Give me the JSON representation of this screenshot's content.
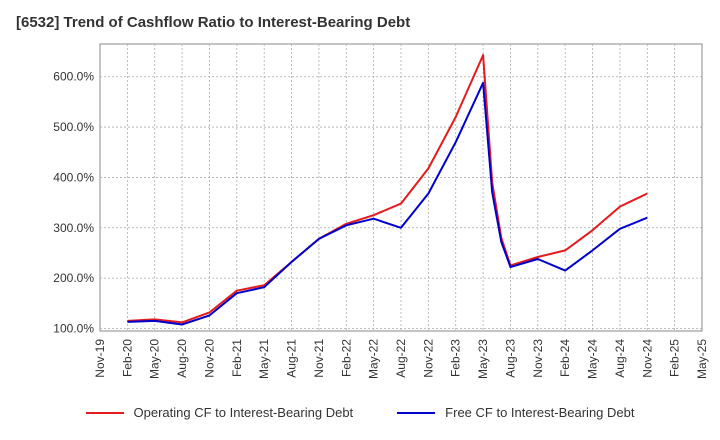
{
  "chart_data": {
    "type": "line",
    "title": "[6532]  Trend of Cashflow Ratio to Interest-Bearing Debt",
    "xlabel": "",
    "ylabel": "",
    "x_ticks": [
      "Nov-19",
      "Feb-20",
      "May-20",
      "Aug-20",
      "Nov-20",
      "Feb-21",
      "May-21",
      "Aug-21",
      "Nov-21",
      "Feb-22",
      "May-22",
      "Aug-22",
      "Nov-22",
      "Feb-23",
      "May-23",
      "Aug-23",
      "Nov-23",
      "Feb-24",
      "May-24",
      "Aug-24",
      "Nov-24",
      "Feb-25",
      "May-25"
    ],
    "y_ticks": [
      "100.0%",
      "200.0%",
      "300.0%",
      "400.0%",
      "500.0%",
      "600.0%"
    ],
    "y_tick_values": [
      100,
      200,
      300,
      400,
      500,
      600
    ],
    "ylim": [
      95,
      665
    ],
    "grid": true,
    "legend_position": "bottom",
    "series": [
      {
        "name": "Operating CF to Interest-Bearing Debt",
        "color": "#e41a1c",
        "points": [
          [
            "Feb-20",
            115
          ],
          [
            "May-20",
            118
          ],
          [
            "Aug-20",
            112
          ],
          [
            "Nov-20",
            132
          ],
          [
            "Feb-21",
            175
          ],
          [
            "May-21",
            186
          ],
          [
            "Aug-21",
            232
          ],
          [
            "Nov-21",
            278
          ],
          [
            "Feb-22",
            308
          ],
          [
            "May-22",
            325
          ],
          [
            "Aug-22",
            348
          ],
          [
            "Nov-22",
            418
          ],
          [
            "Feb-23",
            520
          ],
          [
            "May-23",
            643
          ],
          [
            "Jun-23",
            390
          ],
          [
            "Jul-23",
            280
          ],
          [
            "Aug-23",
            225
          ],
          [
            "Nov-23",
            242
          ],
          [
            "Feb-24",
            255
          ],
          [
            "May-24",
            295
          ],
          [
            "Aug-24",
            342
          ],
          [
            "Nov-24",
            368
          ]
        ]
      },
      {
        "name": "Free CF to Interest-Bearing Debt",
        "color": "#0000cc",
        "points": [
          [
            "Feb-20",
            113
          ],
          [
            "May-20",
            115
          ],
          [
            "Aug-20",
            108
          ],
          [
            "Nov-20",
            126
          ],
          [
            "Feb-21",
            170
          ],
          [
            "May-21",
            182
          ],
          [
            "Aug-21",
            232
          ],
          [
            "Nov-21",
            278
          ],
          [
            "Feb-22",
            305
          ],
          [
            "May-22",
            318
          ],
          [
            "Aug-22",
            300
          ],
          [
            "Nov-22",
            368
          ],
          [
            "Feb-23",
            470
          ],
          [
            "May-23",
            588
          ],
          [
            "Jun-23",
            370
          ],
          [
            "Jul-23",
            272
          ],
          [
            "Aug-23",
            222
          ],
          [
            "Nov-23",
            238
          ],
          [
            "Feb-24",
            215
          ],
          [
            "May-24",
            255
          ],
          [
            "Aug-24",
            298
          ],
          [
            "Nov-24",
            320
          ]
        ]
      }
    ]
  },
  "legend": {
    "item0": "Operating CF to Interest-Bearing Debt",
    "item1": "Free CF to Interest-Bearing Debt"
  }
}
